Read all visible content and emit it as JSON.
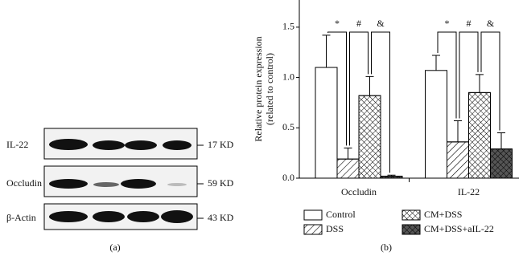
{
  "blot": {
    "rows": [
      {
        "label": "IL-22",
        "size": "17 KD"
      },
      {
        "label": "Occludin",
        "size": "59 KD"
      },
      {
        "label": "β-Actin",
        "size": "43 KD"
      }
    ],
    "caption": "(a)"
  },
  "chart_data": {
    "type": "bar",
    "ylabel": [
      "Relative protein expression",
      "(related to control)"
    ],
    "categories": [
      "Occludin",
      "IL-22"
    ],
    "series": [
      {
        "name": "Control",
        "color": "#ffffff",
        "hatch": "none",
        "values": [
          1.1,
          1.07
        ],
        "errors": [
          0.32,
          0.15
        ]
      },
      {
        "name": "DSS",
        "color": "#ffffff",
        "hatch": "diagonal",
        "values": [
          0.19,
          0.36
        ],
        "errors": [
          0.11,
          0.21
        ]
      },
      {
        "name": "CM+DSS",
        "color": "#ffffff",
        "hatch": "cross",
        "values": [
          0.82,
          0.85
        ],
        "errors": [
          0.19,
          0.18
        ]
      },
      {
        "name": "CM+DSS+aIL-22",
        "color": "#555555",
        "hatch": "cross",
        "values": [
          0.02,
          0.29
        ],
        "errors": [
          0.01,
          0.16
        ]
      }
    ],
    "significance": [
      "*",
      "#",
      "&"
    ],
    "ylim": [
      0,
      1.77
    ],
    "yticks": [
      {
        "value": 0,
        "label": "0.0"
      },
      0.5,
      {
        "value": 1,
        "label": "1.0"
      },
      1.5
    ],
    "caption": "(b)"
  }
}
